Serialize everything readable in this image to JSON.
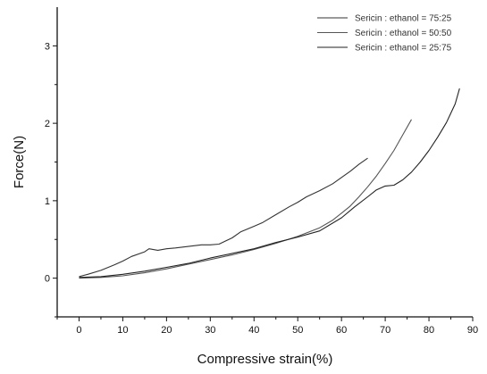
{
  "chart_data": {
    "type": "line",
    "title": "",
    "xlabel": "Compressive strain(%)",
    "ylabel": "Force(N)",
    "xlim": [
      -5,
      90
    ],
    "ylim": [
      -0.5,
      3.5
    ],
    "x_ticks": [
      0,
      10,
      20,
      30,
      40,
      50,
      60,
      70,
      80,
      90
    ],
    "y_ticks": [
      0,
      1,
      2,
      3
    ],
    "grid": false,
    "legend_position": "top-right",
    "series": [
      {
        "name": "Sericin : ethanol = 75:25",
        "color": "#333333",
        "x": [
          0,
          2,
          5,
          8,
          10,
          12,
          15,
          16,
          18,
          20,
          22,
          25,
          28,
          30,
          32,
          35,
          37,
          40,
          42,
          45,
          48,
          50,
          52,
          55,
          58,
          60,
          62,
          64,
          66
        ],
        "y": [
          0.02,
          0.05,
          0.1,
          0.17,
          0.22,
          0.28,
          0.34,
          0.38,
          0.36,
          0.38,
          0.39,
          0.41,
          0.43,
          0.43,
          0.44,
          0.52,
          0.6,
          0.67,
          0.72,
          0.82,
          0.92,
          0.98,
          1.05,
          1.13,
          1.22,
          1.3,
          1.38,
          1.47,
          1.55
        ]
      },
      {
        "name": "Sericin : ethanol = 50:50",
        "color": "#555555",
        "x": [
          0,
          5,
          10,
          15,
          20,
          25,
          30,
          35,
          40,
          45,
          50,
          55,
          58,
          60,
          62,
          64,
          66,
          68,
          70,
          72,
          74,
          76
        ],
        "y": [
          0.0,
          0.01,
          0.03,
          0.07,
          0.12,
          0.18,
          0.24,
          0.3,
          0.37,
          0.45,
          0.54,
          0.65,
          0.75,
          0.84,
          0.93,
          1.05,
          1.18,
          1.32,
          1.48,
          1.65,
          1.85,
          2.05
        ]
      },
      {
        "name": "Sericin : ethanol = 25:75",
        "color": "#222222",
        "x": [
          0,
          5,
          10,
          15,
          20,
          25,
          30,
          35,
          40,
          45,
          50,
          55,
          60,
          63,
          66,
          68,
          70,
          72,
          74,
          76,
          78,
          80,
          82,
          84,
          86,
          87
        ],
        "y": [
          0.01,
          0.02,
          0.05,
          0.09,
          0.14,
          0.19,
          0.26,
          0.32,
          0.38,
          0.46,
          0.53,
          0.61,
          0.78,
          0.92,
          1.05,
          1.14,
          1.19,
          1.2,
          1.27,
          1.37,
          1.5,
          1.65,
          1.82,
          2.01,
          2.25,
          2.45
        ]
      }
    ]
  }
}
